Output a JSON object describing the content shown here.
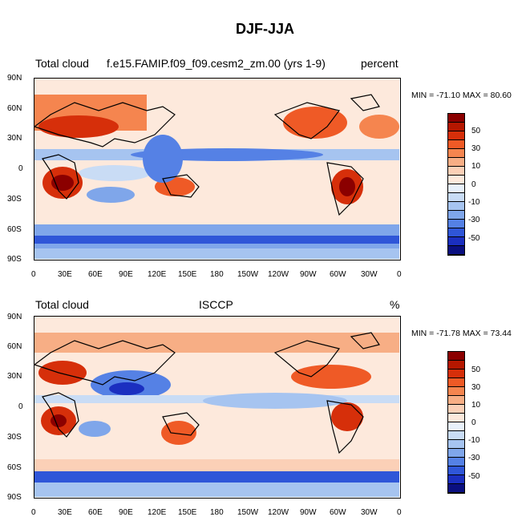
{
  "figure_title": "DJF-JJA",
  "colorbar_labels": [
    "50",
    "30",
    "10",
    "0",
    "-10",
    "-30",
    "-50"
  ],
  "colorbar_colors": [
    "#8b0000",
    "#b51700",
    "#d62f0a",
    "#ef5a26",
    "#f5854f",
    "#f7ae85",
    "#fbd0b7",
    "#fde9dc",
    "#e8f1fb",
    "#c9dcf5",
    "#a6c4f0",
    "#7fa6ea",
    "#5581e5",
    "#2f56d8",
    "#1b2fc0",
    "#0a0f80"
  ],
  "lat_ticks": [
    "90N",
    "60N",
    "30N",
    "0",
    "30S",
    "60S",
    "90S"
  ],
  "lon_ticks": [
    "0",
    "30E",
    "60E",
    "90E",
    "120E",
    "150E",
    "180",
    "150W",
    "120W",
    "90W",
    "60W",
    "30W",
    "0"
  ],
  "panels": [
    {
      "left_label": "Total cloud",
      "center_label": "f.e15.FAMIP.f09_f09.cesm2_zm.00 (yrs 1-9)",
      "right_label": "percent",
      "min_max": "MIN = -71.10 MAX =  80.60"
    },
    {
      "left_label": "Total cloud",
      "center_label": "ISCCP",
      "right_label": "%",
      "min_max": "MIN = -71.78 MAX =  73.44"
    }
  ]
}
